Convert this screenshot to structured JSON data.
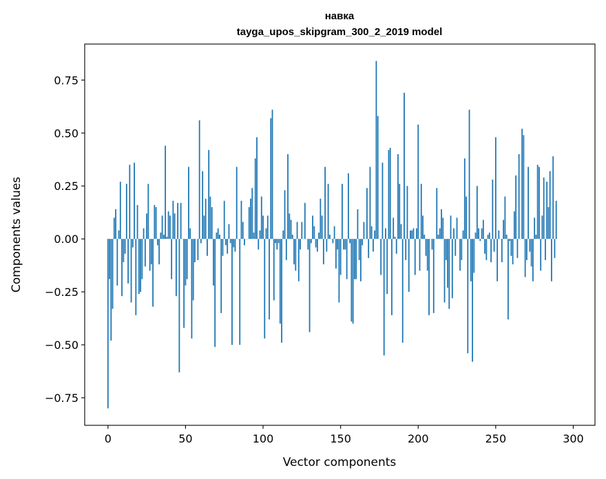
{
  "chart_data": {
    "type": "bar",
    "title": "навка",
    "subtitle": "tayga_upos_skipgram_300_2_2019 model",
    "xlabel": "Vector components",
    "ylabel": "Components values",
    "xlim": [
      -15,
      314
    ],
    "ylim": [
      -0.88,
      0.92
    ],
    "xticks": [
      0,
      50,
      100,
      150,
      200,
      250,
      300
    ],
    "xtick_labels": [
      "0",
      "50",
      "100",
      "150",
      "200",
      "250",
      "300"
    ],
    "yticks": [
      -0.75,
      -0.5,
      -0.25,
      0.0,
      0.25,
      0.5,
      0.75
    ],
    "ytick_labels": [
      "−0.75",
      "−0.50",
      "−0.25",
      "0.00",
      "0.25",
      "0.50",
      "0.75"
    ],
    "grid": false,
    "bar_color": "#1f77b4",
    "values": [
      -0.8,
      -0.19,
      -0.48,
      -0.33,
      0.1,
      0.14,
      -0.22,
      0.04,
      0.27,
      -0.27,
      -0.11,
      -0.07,
      0.26,
      -0.21,
      0.35,
      -0.3,
      -0.04,
      0.36,
      -0.36,
      0.16,
      -0.26,
      -0.25,
      -0.19,
      0.05,
      -0.13,
      0.12,
      0.26,
      -0.15,
      -0.12,
      -0.32,
      0.16,
      0.15,
      -0.03,
      -0.12,
      0.03,
      0.11,
      0.02,
      0.44,
      0.01,
      0.13,
      0.11,
      -0.19,
      0.18,
      0.12,
      -0.27,
      0.17,
      -0.63,
      0.17,
      0.0,
      -0.42,
      -0.22,
      -0.19,
      0.34,
      0.05,
      -0.47,
      -0.29,
      -0.11,
      0.0,
      -0.1,
      0.56,
      -0.02,
      0.32,
      0.11,
      0.19,
      -0.08,
      0.42,
      0.2,
      0.15,
      -0.22,
      -0.51,
      0.03,
      0.05,
      0.02,
      -0.35,
      -0.08,
      0.18,
      -0.03,
      -0.07,
      0.07,
      -0.02,
      -0.5,
      -0.04,
      -0.06,
      0.34,
      0.0,
      -0.5,
      0.18,
      0.08,
      -0.03,
      0.0,
      0.0,
      0.15,
      0.19,
      0.24,
      0.03,
      0.38,
      0.48,
      -0.05,
      0.04,
      0.2,
      0.11,
      -0.47,
      0.05,
      0.11,
      -0.38,
      0.57,
      0.61,
      -0.29,
      -0.02,
      -0.05,
      -0.02,
      -0.4,
      -0.49,
      0.04,
      0.23,
      -0.1,
      0.4,
      0.12,
      0.09,
      0.02,
      -0.12,
      -0.15,
      0.08,
      -0.2,
      -0.05,
      0.08,
      0.0,
      0.17,
      0.0,
      -0.05,
      -0.44,
      -0.02,
      0.11,
      0.06,
      -0.04,
      -0.06,
      0.03,
      0.19,
      0.11,
      -0.12,
      0.34,
      -0.06,
      0.26,
      0.02,
      0.0,
      -0.02,
      0.06,
      -0.14,
      -0.05,
      -0.3,
      -0.17,
      0.26,
      -0.05,
      -0.05,
      -0.19,
      0.31,
      -0.02,
      -0.39,
      -0.4,
      -0.19,
      -0.19,
      0.14,
      -0.1,
      -0.2,
      -0.03,
      0.08,
      0.0,
      0.24,
      -0.09,
      0.34,
      0.06,
      -0.06,
      0.04,
      0.84,
      0.58,
      0.0,
      -0.17,
      0.36,
      -0.55,
      0.05,
      -0.26,
      0.42,
      0.43,
      -0.36,
      0.1,
      0.01,
      -0.07,
      0.4,
      0.26,
      0.07,
      -0.49,
      0.69,
      -0.1,
      0.25,
      -0.25,
      0.04,
      0.04,
      0.05,
      -0.17,
      0.05,
      0.54,
      -0.15,
      0.26,
      0.11,
      0.02,
      -0.08,
      -0.15,
      -0.36,
      0.0,
      -0.05,
      -0.35,
      0.0,
      0.24,
      0.02,
      0.05,
      0.14,
      0.1,
      -0.3,
      -0.1,
      -0.23,
      -0.33,
      0.11,
      -0.28,
      0.05,
      -0.08,
      0.1,
      0.0,
      -0.15,
      -0.1,
      0.04,
      0.38,
      0.2,
      -0.54,
      0.61,
      -0.2,
      -0.58,
      -0.16,
      0.03,
      0.25,
      0.05,
      -0.01,
      0.05,
      0.09,
      -0.07,
      -0.1,
      0.02,
      0.03,
      -0.11,
      0.28,
      -0.06,
      0.48,
      -0.2,
      0.04,
      0.0,
      -0.11,
      0.09,
      0.2,
      0.02,
      -0.38,
      -0.01,
      -0.08,
      -0.12,
      0.13,
      0.3,
      -0.09,
      0.4,
      0.0,
      0.52,
      0.49,
      -0.18,
      -0.1,
      0.34,
      -0.06,
      -0.13,
      -0.2,
      0.1,
      0.02,
      0.35,
      0.34,
      -0.15,
      0.11,
      0.29,
      -0.1,
      0.27,
      0.15,
      0.32,
      -0.2,
      0.39,
      -0.09,
      0.18
    ]
  }
}
